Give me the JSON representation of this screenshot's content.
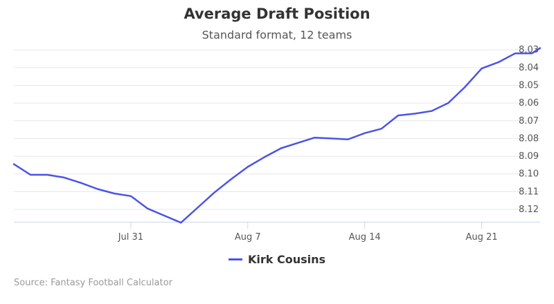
{
  "chart_data": {
    "type": "line",
    "title": "Average Draft Position",
    "subtitle": "Standard format, 12 teams",
    "xlabel": "",
    "ylabel": "",
    "y_reversed": true,
    "ylim": [
      8.035,
      8.127
    ],
    "grid": "horizontal",
    "legend_position": "bottom",
    "x_ticks": [
      {
        "date": "2018-07-31",
        "label": "Jul 31"
      },
      {
        "date": "2018-08-07",
        "label": "Aug 7"
      },
      {
        "date": "2018-08-14",
        "label": "Aug 14"
      },
      {
        "date": "2018-08-21",
        "label": "Aug 21"
      }
    ],
    "y_ticks": [
      "8.03",
      "8.04",
      "8.05",
      "8.06",
      "8.07",
      "8.08",
      "8.09",
      "8.10",
      "8.11",
      "8.12"
    ],
    "series": [
      {
        "name": "Kirk Cousins",
        "color": "#4b53e6",
        "points": [
          [
            "2018-07-24",
            8.0945
          ],
          [
            "2018-07-25",
            8.1005
          ],
          [
            "2018-07-26",
            8.1005
          ],
          [
            "2018-07-27",
            8.102
          ],
          [
            "2018-07-28",
            8.105
          ],
          [
            "2018-07-29",
            8.1085
          ],
          [
            "2018-07-30",
            8.111
          ],
          [
            "2018-07-31",
            8.1125
          ],
          [
            "2018-08-01",
            8.1195
          ],
          [
            "2018-08-02",
            8.1235
          ],
          [
            "2018-08-03",
            8.1275
          ],
          [
            "2018-08-04",
            8.119
          ],
          [
            "2018-08-05",
            8.1105
          ],
          [
            "2018-08-06",
            8.103
          ],
          [
            "2018-08-07",
            8.096
          ],
          [
            "2018-08-08",
            8.0905
          ],
          [
            "2018-08-09",
            8.0855
          ],
          [
            "2018-08-10",
            8.0825
          ],
          [
            "2018-08-11",
            8.0795
          ],
          [
            "2018-08-12",
            8.08
          ],
          [
            "2018-08-13",
            8.0805
          ],
          [
            "2018-08-14",
            8.077
          ],
          [
            "2018-08-15",
            8.0745
          ],
          [
            "2018-08-16",
            8.067
          ],
          [
            "2018-08-17",
            8.066
          ],
          [
            "2018-08-18",
            8.0645
          ],
          [
            "2018-08-19",
            8.06
          ],
          [
            "2018-08-20",
            8.051
          ],
          [
            "2018-08-21",
            8.0405
          ],
          [
            "2018-08-22",
            8.037
          ],
          [
            "2018-08-23",
            8.032
          ],
          [
            "2018-08-24",
            8.032
          ],
          [
            "2018-08-24T12:00",
            8.029
          ]
        ]
      }
    ]
  },
  "source_note": "Source: Fantasy Football Calculator"
}
